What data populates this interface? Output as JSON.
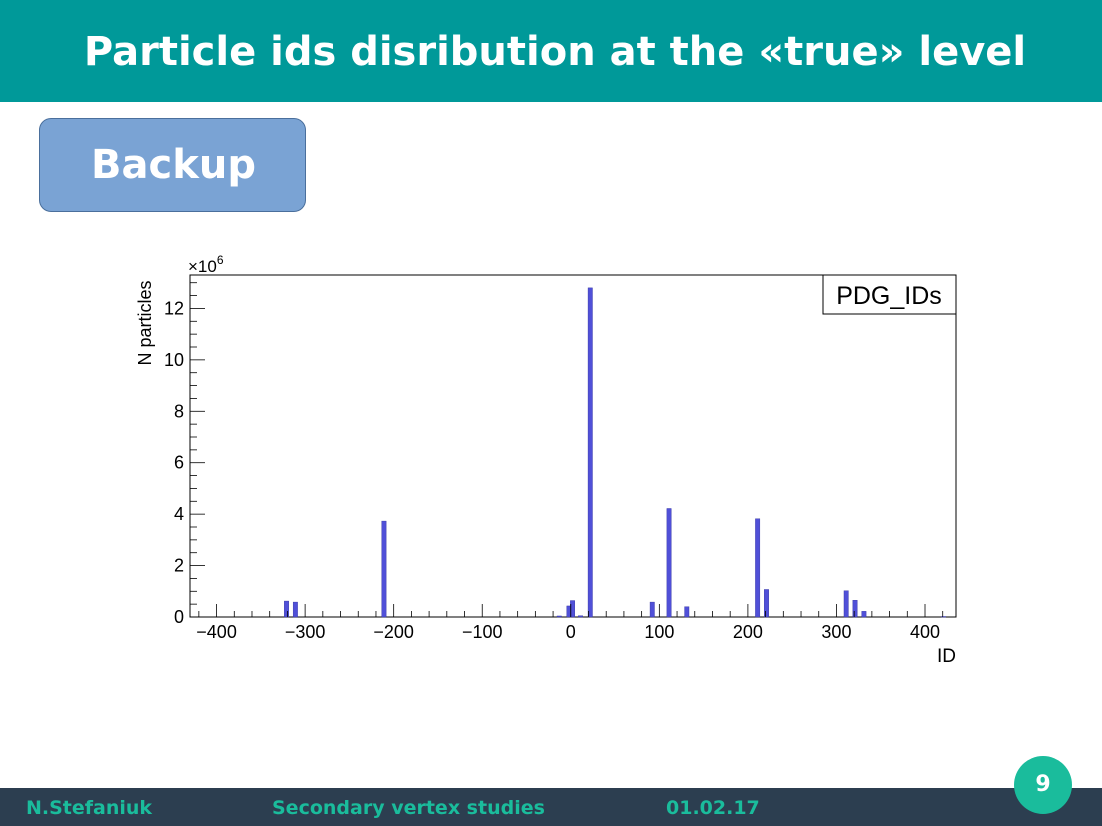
{
  "slide": {
    "title": "Particle ids disribution at the «true» level",
    "backup_label": "Backup",
    "footer": {
      "author": "N.Stefaniuk",
      "topic": "Secondary vertex studies",
      "date": "01.02.17"
    },
    "page_number": "9"
  },
  "colors": {
    "header": "#009999",
    "backup_box": "#7aa3d4",
    "bars": "#5050d8",
    "footer": "#2c3e50",
    "accent": "#1abc9c"
  },
  "chart_data": {
    "type": "bar",
    "histogram_name": "PDG_IDs",
    "xlabel": "ID",
    "ylabel": "N particles",
    "y_multiplier": "×10",
    "y_multiplier_exponent": "6",
    "xlim": [
      -430,
      435
    ],
    "ylim": [
      0,
      13.3
    ],
    "x_ticks": [
      -400,
      -300,
      -200,
      -100,
      0,
      100,
      200,
      300,
      400
    ],
    "x_tick_labels": [
      "−400",
      "−300",
      "−200",
      "−100",
      "0",
      "100",
      "200",
      "300",
      "400"
    ],
    "y_ticks": [
      0,
      2,
      4,
      6,
      8,
      10,
      12
    ],
    "y_tick_labels": [
      "0",
      "2",
      "4",
      "6",
      "8",
      "10",
      "12"
    ],
    "bin_width": 5,
    "bars": [
      {
        "x": -321,
        "y": 0.62
      },
      {
        "x": -311,
        "y": 0.58
      },
      {
        "x": -211,
        "y": 3.73
      },
      {
        "x": -13,
        "y": 0.04
      },
      {
        "x": -2,
        "y": 0.43
      },
      {
        "x": 2,
        "y": 0.64
      },
      {
        "x": 11,
        "y": 0.05
      },
      {
        "x": 22,
        "y": 12.8
      },
      {
        "x": 92,
        "y": 0.58
      },
      {
        "x": 111,
        "y": 4.22
      },
      {
        "x": 131,
        "y": 0.4
      },
      {
        "x": 211,
        "y": 3.82
      },
      {
        "x": 221,
        "y": 1.07
      },
      {
        "x": 311,
        "y": 1.02
      },
      {
        "x": 321,
        "y": 0.65
      },
      {
        "x": 331,
        "y": 0.22
      },
      {
        "x": 421,
        "y": 0.02
      }
    ]
  }
}
